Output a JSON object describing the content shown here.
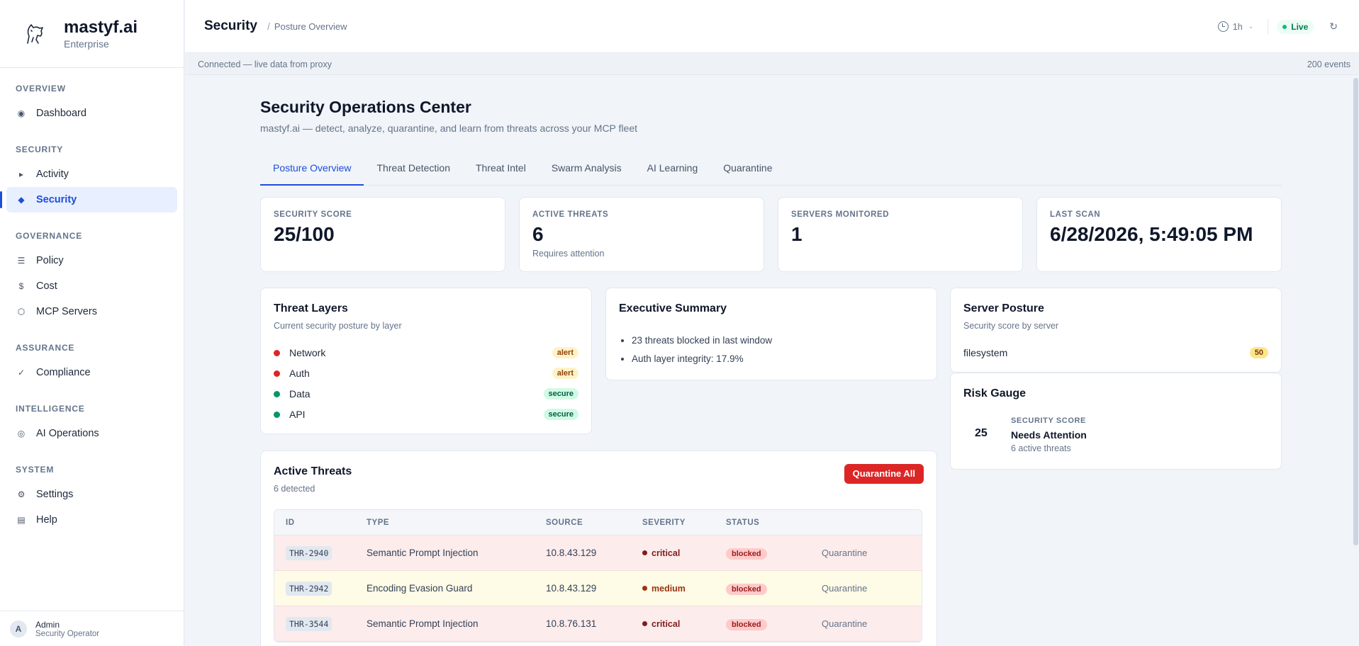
{
  "brand": {
    "name": "mastyf.ai",
    "tier": "Enterprise",
    "logo_icon": "dog-icon"
  },
  "sidebar": {
    "sections": [
      {
        "label": "OVERVIEW",
        "items": [
          {
            "label": "Dashboard",
            "icon": "◉"
          }
        ]
      },
      {
        "label": "SECURITY",
        "items": [
          {
            "label": "Activity",
            "icon": "▸"
          },
          {
            "label": "Security",
            "icon": "◆",
            "active": true
          }
        ]
      },
      {
        "label": "GOVERNANCE",
        "items": [
          {
            "label": "Policy",
            "icon": "☰"
          },
          {
            "label": "Cost",
            "icon": "$"
          },
          {
            "label": "MCP Servers",
            "icon": "⬡"
          }
        ]
      },
      {
        "label": "ASSURANCE",
        "items": [
          {
            "label": "Compliance",
            "icon": "✓"
          }
        ]
      },
      {
        "label": "INTELLIGENCE",
        "items": [
          {
            "label": "AI Operations",
            "icon": "◎"
          }
        ]
      },
      {
        "label": "SYSTEM",
        "items": [
          {
            "label": "Settings",
            "icon": "⚙"
          },
          {
            "label": "Help",
            "icon": "▤"
          }
        ]
      }
    ],
    "user": {
      "initial": "A",
      "name": "Admin",
      "role": "Security Operator"
    }
  },
  "topbar": {
    "title": "Security",
    "separator": "/",
    "crumb": "Posture Overview",
    "time_range": "1h",
    "live_label": "Live",
    "refresh_icon": "↻"
  },
  "statusbar": {
    "left": "Connected — live data from proxy",
    "right": "200 events"
  },
  "page": {
    "title": "Security Operations Center",
    "subtitle": "mastyf.ai — detect, analyze, quarantine, and learn from threats across your MCP fleet",
    "tabs": [
      "Posture Overview",
      "Threat Detection",
      "Threat Intel",
      "Swarm Analysis",
      "AI Learning",
      "Quarantine"
    ],
    "active_tab": 0
  },
  "stats": [
    {
      "label": "SECURITY SCORE",
      "value": "25/100",
      "note": ""
    },
    {
      "label": "ACTIVE THREATS",
      "value": "6",
      "note": "Requires attention"
    },
    {
      "label": "SERVERS MONITORED",
      "value": "1",
      "note": ""
    },
    {
      "label": "LAST SCAN",
      "value": "6/28/2026, 5:49:05 PM",
      "note": ""
    }
  ],
  "threat_layers": {
    "title": "Threat Layers",
    "subtitle": "Current security posture by layer",
    "layers": [
      {
        "name": "Network",
        "status": "alert",
        "color": "#dc2626"
      },
      {
        "name": "Auth",
        "status": "alert",
        "color": "#dc2626"
      },
      {
        "name": "Data",
        "status": "secure",
        "color": "#059669"
      },
      {
        "name": "API",
        "status": "secure",
        "color": "#059669"
      }
    ]
  },
  "executive_summary": {
    "title": "Executive Summary",
    "points": [
      "23 threats blocked in last window",
      "Auth layer integrity: 17.9%"
    ]
  },
  "server_posture": {
    "title": "Server Posture",
    "subtitle": "Security score by server",
    "servers": [
      {
        "name": "filesystem",
        "score": "50"
      }
    ]
  },
  "risk_gauge": {
    "title": "Risk Gauge",
    "score": "25",
    "label": "SECURITY SCORE",
    "status": "Needs Attention",
    "note": "6 active threats"
  },
  "active_threats": {
    "title": "Active Threats",
    "subtitle": "6 detected",
    "action_label": "Quarantine All",
    "columns": [
      "ID",
      "TYPE",
      "SOURCE",
      "SEVERITY",
      "STATUS",
      ""
    ],
    "rows": [
      {
        "id": "THR-2940",
        "type": "Semantic Prompt Injection",
        "source": "10.8.43.129",
        "severity": "critical",
        "status": "blocked",
        "action": "Quarantine"
      },
      {
        "id": "THR-2942",
        "type": "Encoding Evasion Guard",
        "source": "10.8.43.129",
        "severity": "medium",
        "status": "blocked",
        "action": "Quarantine"
      },
      {
        "id": "THR-3544",
        "type": "Semantic Prompt Injection",
        "source": "10.8.76.131",
        "severity": "critical",
        "status": "blocked",
        "action": "Quarantine"
      }
    ]
  }
}
